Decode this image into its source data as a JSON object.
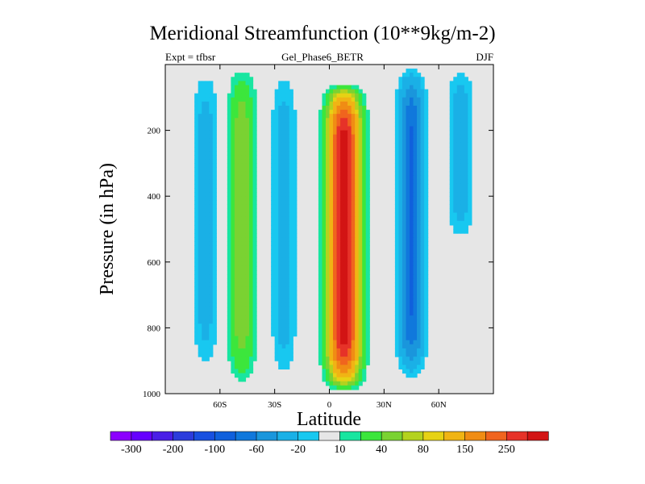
{
  "figure": {
    "title": "Meridional Streamfunction (10**9kg/m-2)",
    "experiment": "Expt = tfbsr",
    "case_name": "Gel_Phase6_BETR",
    "season": "DJF"
  },
  "chart_data": {
    "type": "filled-contour",
    "title": "Meridional Streamfunction (10**9kg/m-2)",
    "xlabel": "Latitude",
    "ylabel": "Pressure (in hPa)",
    "xlim": [
      -90,
      90
    ],
    "ylim": [
      1000,
      0
    ],
    "y_inverted": true,
    "x_ticks": [
      {
        "value": -60,
        "label": "60S"
      },
      {
        "value": -30,
        "label": "30S"
      },
      {
        "value": 0,
        "label": "0"
      },
      {
        "value": 30,
        "label": "30N"
      },
      {
        "value": 60,
        "label": "60N"
      }
    ],
    "y_ticks": [
      {
        "value": 200,
        "label": "200"
      },
      {
        "value": 400,
        "label": "400"
      },
      {
        "value": 600,
        "label": "600"
      },
      {
        "value": 800,
        "label": "800"
      },
      {
        "value": 1000,
        "label": "1000"
      }
    ],
    "colorbar": {
      "levels": [
        -300,
        -250,
        -200,
        -150,
        -100,
        -80,
        -60,
        -40,
        -20,
        -10,
        10,
        20,
        40,
        60,
        80,
        100,
        150,
        200,
        250,
        300
      ],
      "labels": [
        "-300",
        "-200",
        "-100",
        "-60",
        "-20",
        "10",
        "40",
        "80",
        "150",
        "250"
      ],
      "colors": [
        "#8c00ff",
        "#6600ff",
        "#4a1ee6",
        "#2c3cdc",
        "#1850e0",
        "#1060dc",
        "#1078dc",
        "#1a96dc",
        "#1ab0e6",
        "#18c8f0",
        "#e6e6e6",
        "#18e6a0",
        "#3ce63c",
        "#7ad232",
        "#b4d21e",
        "#e6d214",
        "#f0b414",
        "#f08c14",
        "#f0641e",
        "#e63228",
        "#d21414"
      ]
    },
    "features": [
      {
        "name": "southern polar cell",
        "lat_center": -68,
        "p_top": 0,
        "p_bottom": 940,
        "sign": "negative",
        "peak_level": -20
      },
      {
        "name": "southern ferrel cell",
        "lat_center": -48,
        "p_top": 0,
        "p_bottom": 980,
        "sign": "positive",
        "peak_level": 40
      },
      {
        "name": "southern weak cell",
        "lat_center": -25,
        "p_top": 0,
        "p_bottom": 970,
        "sign": "negative",
        "peak_level": -20
      },
      {
        "name": "hadley cell",
        "lat_center": 8,
        "p_top": 60,
        "p_bottom": 990,
        "sign": "positive",
        "peak_level": 250
      },
      {
        "name": "northern ferrel cell",
        "lat_center": 45,
        "p_top": 0,
        "p_bottom": 960,
        "sign": "negative",
        "peak_level": -60
      },
      {
        "name": "northern polar cell",
        "lat_center": 72,
        "p_top": 0,
        "p_bottom": 540,
        "sign": "negative",
        "peak_level": -20
      }
    ]
  }
}
